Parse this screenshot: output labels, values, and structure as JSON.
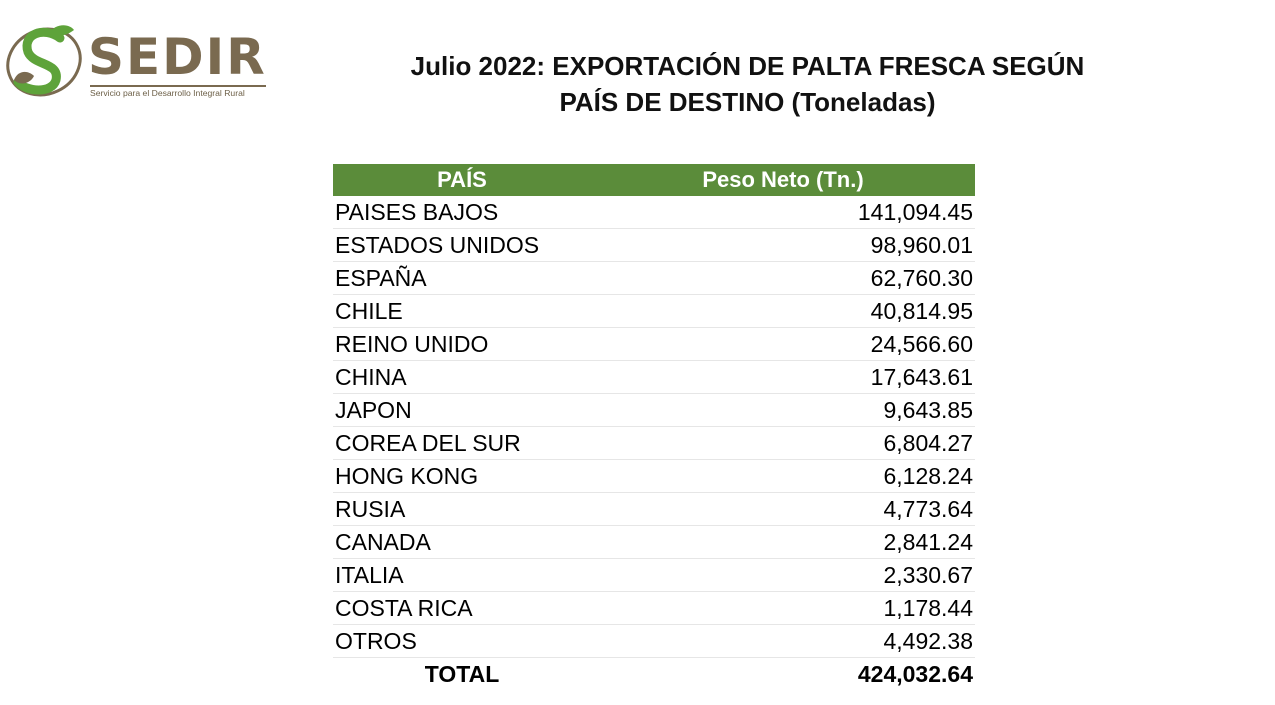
{
  "logo": {
    "name": "SEDIR",
    "tagline": "Servicio para el Desarrollo Integral Rural",
    "colors": {
      "green": "#5ea33a",
      "brown": "#7a6a50"
    }
  },
  "title": {
    "line1": "Julio 2022: EXPORTACIÓN DE PALTA FRESCA SEGÚN",
    "line2": "PAÍS DE DESTINO (Toneladas)"
  },
  "table": {
    "header_color": "#5b8c3a",
    "headers": {
      "country": "PAÍS",
      "weight": "Peso Neto (Tn.)"
    },
    "rows": [
      {
        "country": "PAISES BAJOS",
        "weight": "141,094.45"
      },
      {
        "country": "ESTADOS UNIDOS",
        "weight": "98,960.01"
      },
      {
        "country": "ESPAÑA",
        "weight": "62,760.30"
      },
      {
        "country": "CHILE",
        "weight": "40,814.95"
      },
      {
        "country": "REINO UNIDO",
        "weight": "24,566.60"
      },
      {
        "country": "CHINA",
        "weight": "17,643.61"
      },
      {
        "country": "JAPON",
        "weight": "9,643.85"
      },
      {
        "country": "COREA DEL SUR",
        "weight": "6,804.27"
      },
      {
        "country": "HONG KONG",
        "weight": "6,128.24"
      },
      {
        "country": "RUSIA",
        "weight": "4,773.64"
      },
      {
        "country": "CANADA",
        "weight": "2,841.24"
      },
      {
        "country": "ITALIA",
        "weight": "2,330.67"
      },
      {
        "country": "COSTA RICA",
        "weight": "1,178.44"
      },
      {
        "country": "OTROS",
        "weight": "4,492.38"
      }
    ],
    "total": {
      "label": "TOTAL",
      "weight": "424,032.64"
    }
  }
}
